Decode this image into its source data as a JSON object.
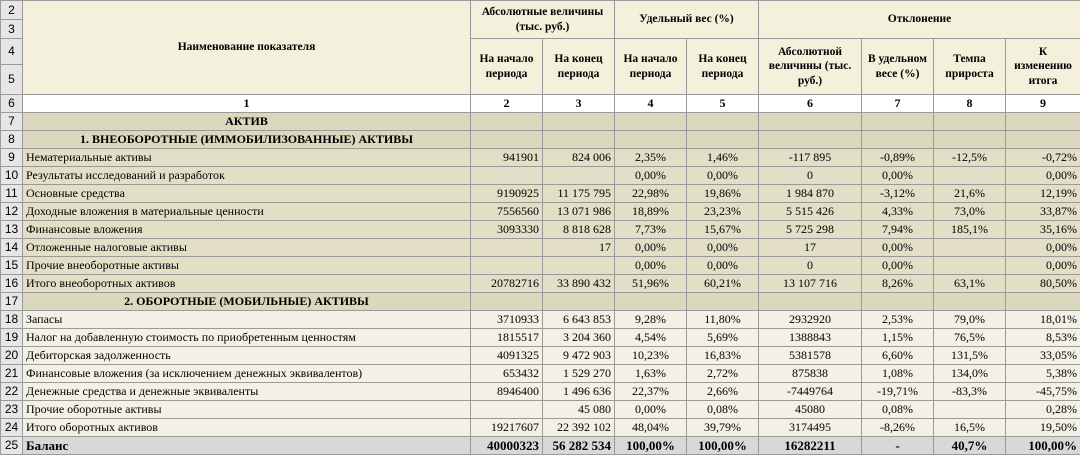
{
  "sheet": {
    "header": {
      "rows_left": [
        "2",
        "3",
        "4",
        "5"
      ],
      "name_col": "Наименование показателя",
      "group_abs": "Абсолютные величины (тыс. руб.)",
      "group_share": "Удельный вес (%)",
      "group_dev": "Отклонение",
      "sub_start": "На начало периода",
      "sub_end": "На конец периода",
      "sub_dev_abs": "Абсолютной величины (тыс. руб.)",
      "sub_dev_share": "В удельном весе (%)",
      "sub_growth": "Темпа прироста",
      "sub_total_change": "К изменению итога"
    },
    "col_numbers": {
      "row": "6",
      "cells": [
        "1",
        "2",
        "3",
        "4",
        "5",
        "6",
        "7",
        "8",
        "9"
      ]
    },
    "aktiv": {
      "row": "7",
      "label": "АКТИВ"
    },
    "section1": {
      "row": "8",
      "label": "1. ВНЕОБОРОТНЫЕ (ИММОБИЛИЗОВАННЫЕ) АКТИВЫ"
    },
    "group1": [
      {
        "row": "9",
        "name": "Нематериальные активы",
        "v": [
          "941901",
          "824 006",
          "2,35%",
          "1,46%",
          "-117 895",
          "-0,89%",
          "-12,5%",
          "-0,72%"
        ]
      },
      {
        "row": "10",
        "name": "Результаты исследований и разработок",
        "v": [
          "",
          "",
          "0,00%",
          "0,00%",
          "0",
          "0,00%",
          "",
          "0,00%"
        ]
      },
      {
        "row": "11",
        "name": "Основные средства",
        "v": [
          "9190925",
          "11 175 795",
          "22,98%",
          "19,86%",
          "1 984 870",
          "-3,12%",
          "21,6%",
          "12,19%"
        ]
      },
      {
        "row": "12",
        "name": "Доходные вложения в материальные ценности",
        "v": [
          "7556560",
          "13 071 986",
          "18,89%",
          "23,23%",
          "5 515 426",
          "4,33%",
          "73,0%",
          "33,87%"
        ]
      },
      {
        "row": "13",
        "name": "Финансовые вложения",
        "v": [
          "3093330",
          "8 818 628",
          "7,73%",
          "15,67%",
          "5 725 298",
          "7,94%",
          "185,1%",
          "35,16%"
        ]
      },
      {
        "row": "14",
        "name": "Отложенные налоговые активы",
        "v": [
          "",
          "17",
          "0,00%",
          "0,00%",
          "17",
          "0,00%",
          "",
          "0,00%"
        ]
      },
      {
        "row": "15",
        "name": "Прочие внеоборотные активы",
        "v": [
          "",
          "",
          "0,00%",
          "0,00%",
          "0",
          "0,00%",
          "",
          "0,00%"
        ]
      },
      {
        "row": "16",
        "name": "Итого внеоборотных активов",
        "v": [
          "20782716",
          "33 890 432",
          "51,96%",
          "60,21%",
          "13 107 716",
          "8,26%",
          "63,1%",
          "80,50%"
        ]
      }
    ],
    "section2": {
      "row": "17",
      "label": "2. ОБОРОТНЫЕ (МОБИЛЬНЫЕ) АКТИВЫ"
    },
    "group2": [
      {
        "row": "18",
        "name": "Запасы",
        "v": [
          "3710933",
          "6 643 853",
          "9,28%",
          "11,80%",
          "2932920",
          "2,53%",
          "79,0%",
          "18,01%"
        ]
      },
      {
        "row": "19",
        "name": "Налог на добавленную стоимость по приобретенным ценностям",
        "v": [
          "1815517",
          "3 204 360",
          "4,54%",
          "5,69%",
          "1388843",
          "1,15%",
          "76,5%",
          "8,53%"
        ]
      },
      {
        "row": "20",
        "name": "Дебиторская задолженность",
        "v": [
          "4091325",
          "9 472 903",
          "10,23%",
          "16,83%",
          "5381578",
          "6,60%",
          "131,5%",
          "33,05%"
        ]
      },
      {
        "row": "21",
        "name": "Финансовые вложения (за исключением денежных эквивалентов)",
        "v": [
          "653432",
          "1 529 270",
          "1,63%",
          "2,72%",
          "875838",
          "1,08%",
          "134,0%",
          "5,38%"
        ]
      },
      {
        "row": "22",
        "name": "Денежные средства и денежные эквиваленты",
        "v": [
          "8946400",
          "1 496 636",
          "22,37%",
          "2,66%",
          "-7449764",
          "-19,71%",
          "-83,3%",
          "-45,75%"
        ]
      },
      {
        "row": "23",
        "name": "Прочие оборотные активы",
        "v": [
          "",
          "45 080",
          "0,00%",
          "0,08%",
          "45080",
          "0,08%",
          "",
          "0,28%"
        ]
      },
      {
        "row": "24",
        "name": "Итого оборотных активов",
        "v": [
          "19217607",
          "22 392 102",
          "48,04%",
          "39,79%",
          "3174495",
          "-8,26%",
          "16,5%",
          "19,50%"
        ]
      }
    ],
    "balance": {
      "row": "25",
      "name": "Баланс",
      "v": [
        "40000323",
        "56 282 534",
        "100,00%",
        "100,00%",
        "16282211",
        "-",
        "40,7%",
        "100,00%"
      ]
    }
  }
}
